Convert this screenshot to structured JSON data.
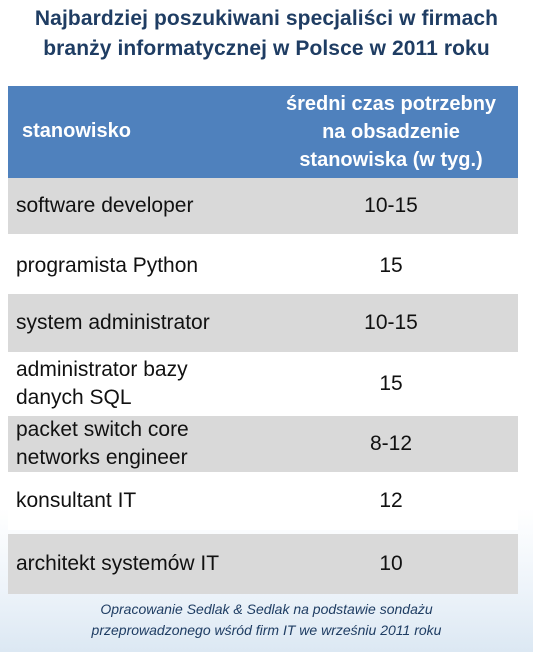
{
  "title": {
    "line1": "Najbardziej poszukiwani specjaliści w firmach",
    "line2": "branży informatycznej w Polsce w 2011 roku"
  },
  "table": {
    "header": {
      "col1": "stanowisko",
      "col2_line1": "średni czas potrzebny",
      "col2_line2": "na obsadzenie",
      "col2_line3": "stanowiska (w tyg.)"
    }
  },
  "chart_data": {
    "type": "table",
    "columns": [
      "stanowisko",
      "średni czas potrzebny na obsadzenie stanowiska (w tyg.)"
    ],
    "rows": [
      {
        "name_lines": [
          "software developer"
        ],
        "value": "10-15"
      },
      {
        "name_lines": [
          "programista Python"
        ],
        "value": "15"
      },
      {
        "name_lines": [
          "system administrator"
        ],
        "value": "10-15"
      },
      {
        "name_lines": [
          "administrator bazy",
          "danych SQL"
        ],
        "value": "15"
      },
      {
        "name_lines": [
          "packet switch core",
          "networks engineer"
        ],
        "value": "8-12"
      },
      {
        "name_lines": [
          "konsultant IT"
        ],
        "value": "12"
      },
      {
        "name_lines": [
          "architekt systemów IT"
        ],
        "value": "10"
      }
    ]
  },
  "footer": {
    "line1": "Opracowanie Sedlak & Sedlak na podstawie sondażu",
    "line2": "przeprowadzonego wśród firm IT we wrześniu 2011 roku"
  }
}
